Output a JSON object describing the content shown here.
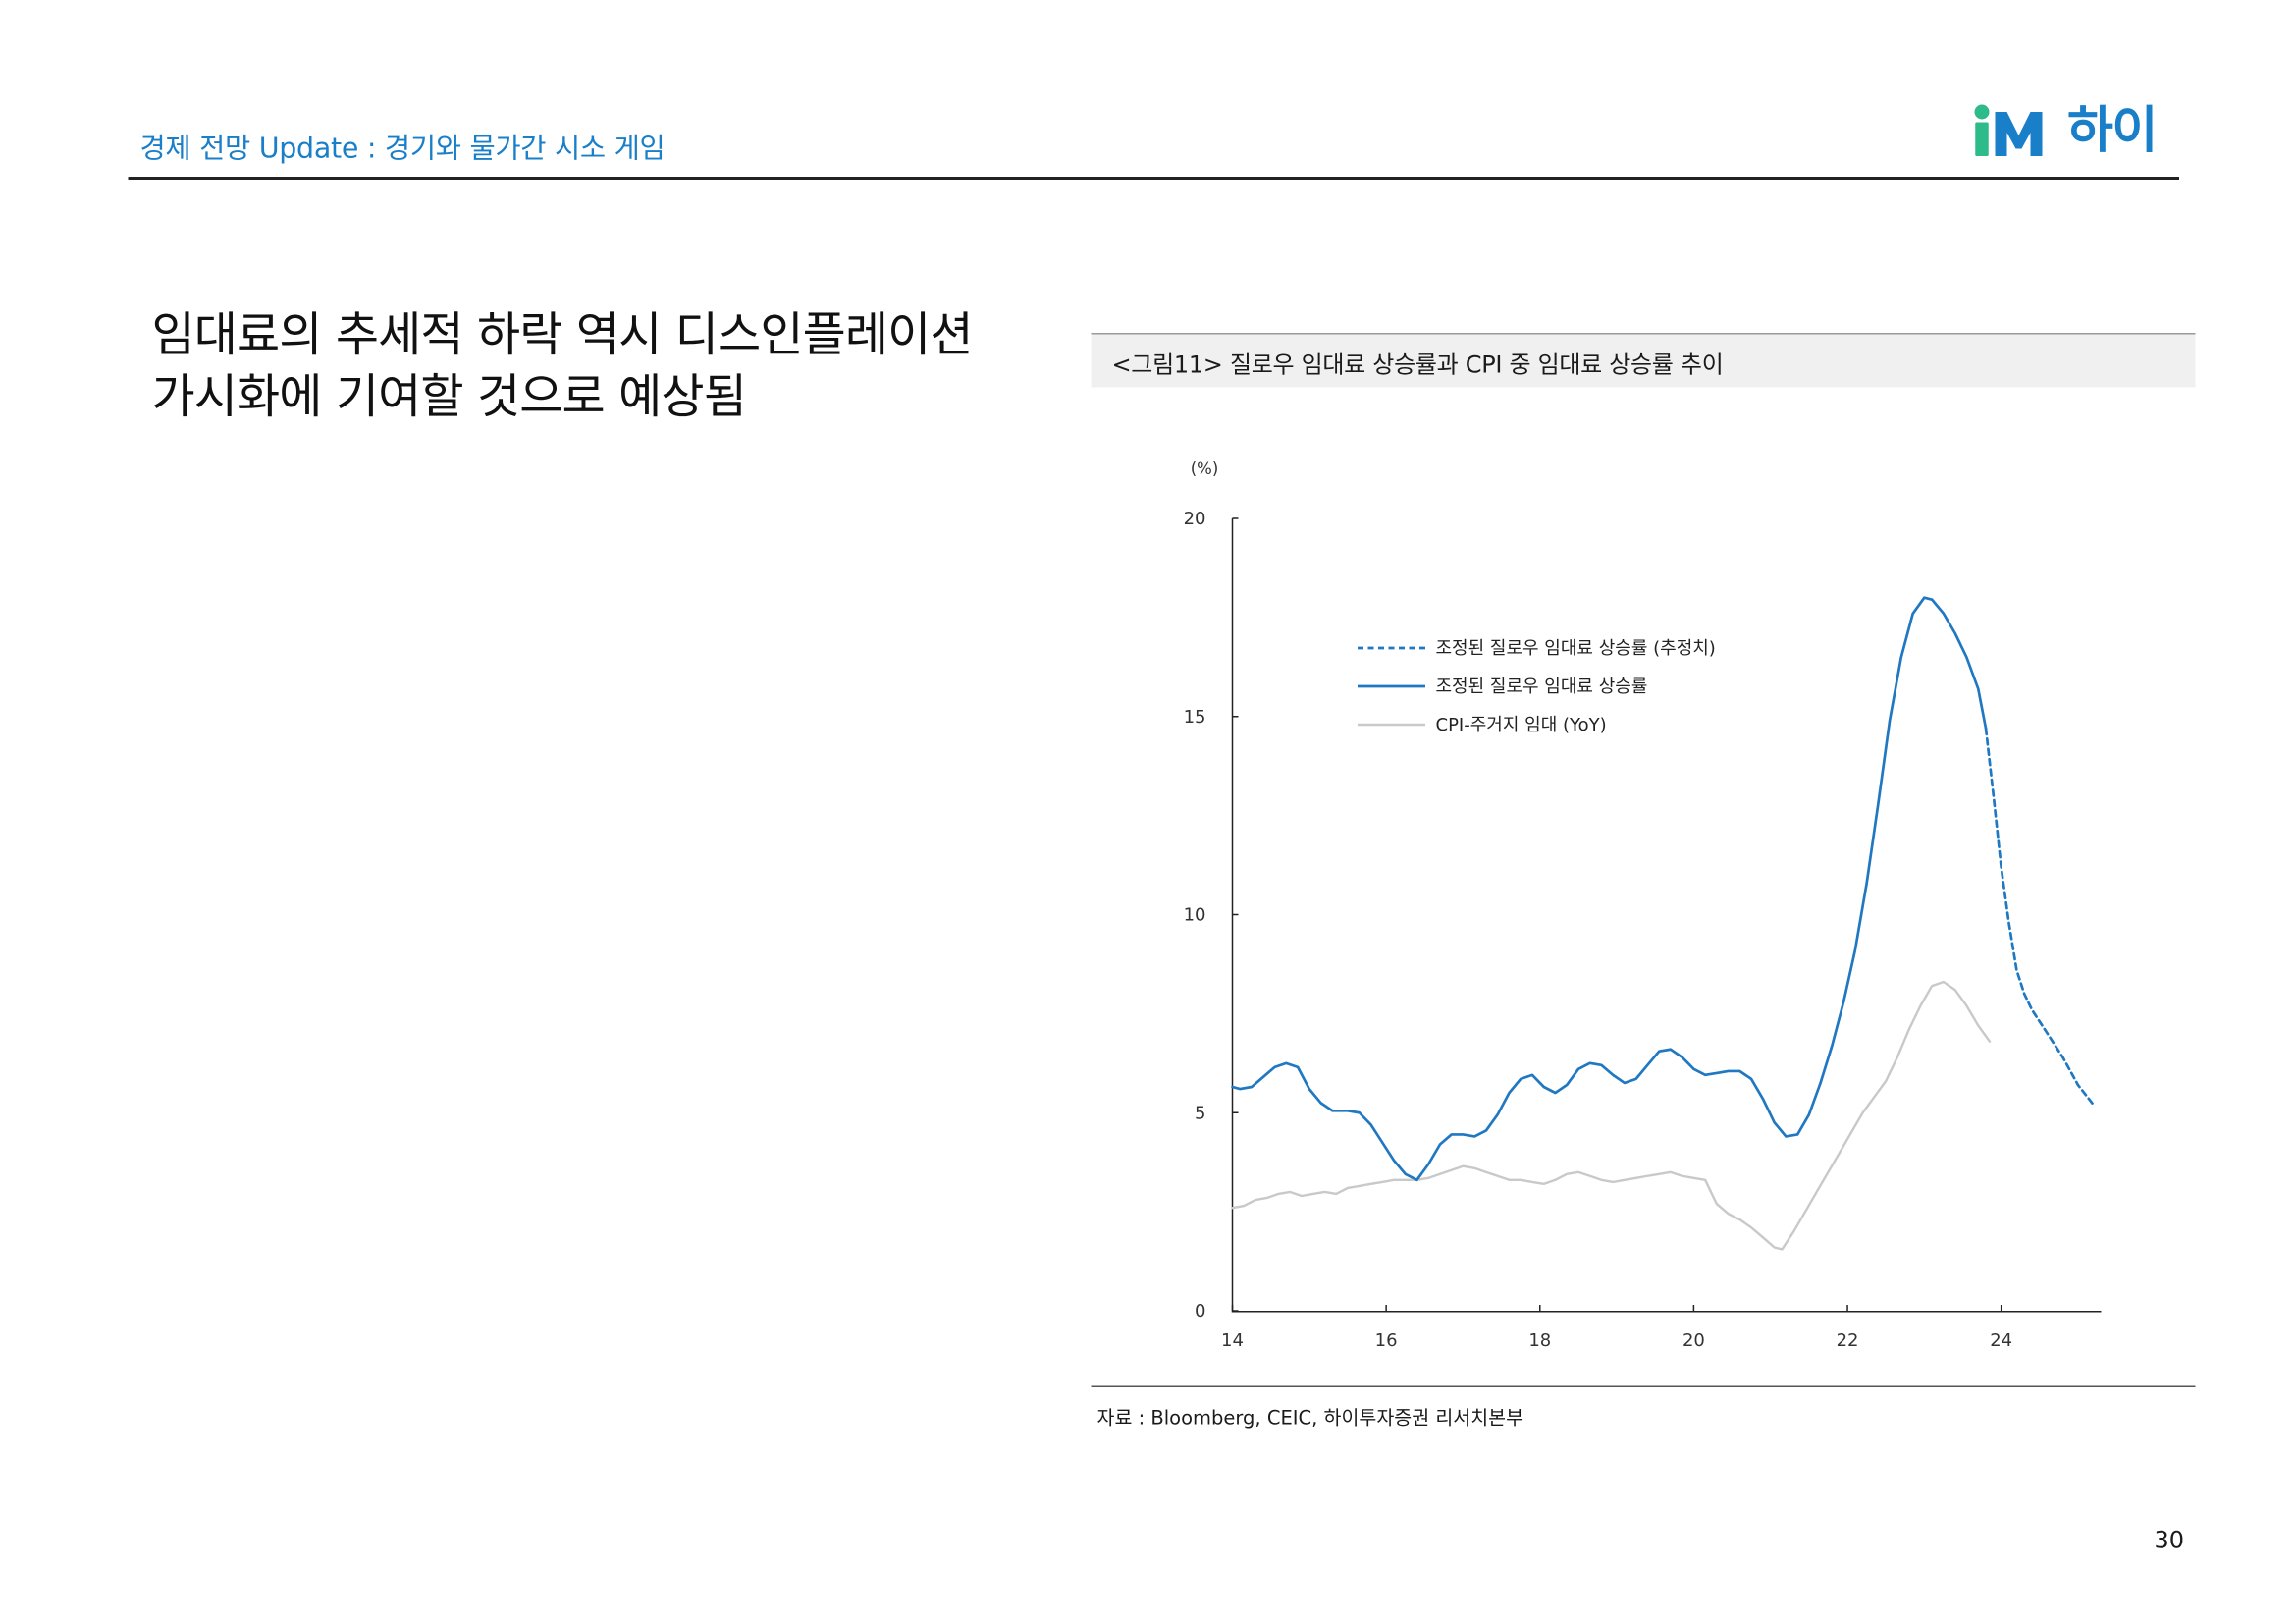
{
  "header": {
    "title": "경제 전망 Update : 경기와 물가간 시소 게임",
    "logo_brand": "iM",
    "logo_korean": "하이"
  },
  "headline": "임대료의 추세적 하락 역시 디스인플레이션 가시화에 기여할 것으로 예상됨",
  "figure": {
    "caption": "<그림11>  질로우 임대료 상승률과 CPI 중 임대료 상승률 추이",
    "source": "자료 : Bloomberg, CEIC, 하이투자증권 리서치본부"
  },
  "page_number": "30",
  "colors": {
    "accent": "#1a7fc9",
    "logo_green": "#2dbb8a",
    "zillow": "#1f78c1",
    "cpi": "#c9c9c9"
  },
  "chart_data": {
    "type": "line",
    "title": "",
    "unit_label": "(%)",
    "xlabel": "",
    "ylabel": "",
    "xlim": [
      14.0,
      25.3
    ],
    "ylim": [
      0,
      20
    ],
    "x_ticks": [
      14,
      16,
      18,
      20,
      22,
      24
    ],
    "x_tick_labels": [
      "14",
      "16",
      "18",
      "20",
      "22",
      "24"
    ],
    "y_ticks": [
      0,
      5,
      10,
      15,
      20
    ],
    "y_tick_labels": [
      "0",
      "5",
      "10",
      "15",
      "20"
    ],
    "grid": false,
    "legend_position": "upper-center",
    "series": [
      {
        "name": "조정된 질로우 임대료 상승률 (추정치)",
        "style": "dashed",
        "color": "#1f78c1",
        "points": [
          [
            23.8,
            14.7
          ],
          [
            23.9,
            13.0
          ],
          [
            24.0,
            11.2
          ],
          [
            24.1,
            9.8
          ],
          [
            24.2,
            8.6
          ],
          [
            24.3,
            8.0
          ],
          [
            24.4,
            7.6
          ],
          [
            24.6,
            7.0
          ],
          [
            24.8,
            6.4
          ],
          [
            25.0,
            5.7
          ],
          [
            25.2,
            5.2
          ]
        ]
      },
      {
        "name": "조정된 질로우 임대료 상승률",
        "style": "solid",
        "color": "#1f78c1",
        "points": [
          [
            14.0,
            5.65
          ],
          [
            14.1,
            5.6
          ],
          [
            14.25,
            5.65
          ],
          [
            14.4,
            5.9
          ],
          [
            14.55,
            6.15
          ],
          [
            14.7,
            6.25
          ],
          [
            14.85,
            6.15
          ],
          [
            15.0,
            5.6
          ],
          [
            15.15,
            5.25
          ],
          [
            15.3,
            5.05
          ],
          [
            15.5,
            5.05
          ],
          [
            15.65,
            5.0
          ],
          [
            15.8,
            4.7
          ],
          [
            15.95,
            4.25
          ],
          [
            16.1,
            3.8
          ],
          [
            16.25,
            3.45
          ],
          [
            16.4,
            3.3
          ],
          [
            16.55,
            3.7
          ],
          [
            16.7,
            4.2
          ],
          [
            16.85,
            4.45
          ],
          [
            17.0,
            4.45
          ],
          [
            17.15,
            4.4
          ],
          [
            17.3,
            4.55
          ],
          [
            17.45,
            4.95
          ],
          [
            17.6,
            5.5
          ],
          [
            17.75,
            5.85
          ],
          [
            17.9,
            5.95
          ],
          [
            18.05,
            5.65
          ],
          [
            18.2,
            5.5
          ],
          [
            18.35,
            5.7
          ],
          [
            18.5,
            6.1
          ],
          [
            18.65,
            6.25
          ],
          [
            18.8,
            6.2
          ],
          [
            18.95,
            5.95
          ],
          [
            19.1,
            5.75
          ],
          [
            19.25,
            5.85
          ],
          [
            19.4,
            6.2
          ],
          [
            19.55,
            6.55
          ],
          [
            19.7,
            6.6
          ],
          [
            19.85,
            6.4
          ],
          [
            20.0,
            6.1
          ],
          [
            20.15,
            5.95
          ],
          [
            20.3,
            6.0
          ],
          [
            20.45,
            6.05
          ],
          [
            20.6,
            6.05
          ],
          [
            20.75,
            5.85
          ],
          [
            20.9,
            5.35
          ],
          [
            21.05,
            4.75
          ],
          [
            21.2,
            4.4
          ],
          [
            21.35,
            4.45
          ],
          [
            21.5,
            4.95
          ],
          [
            21.65,
            5.75
          ],
          [
            21.8,
            6.7
          ],
          [
            21.95,
            7.8
          ],
          [
            22.1,
            9.1
          ],
          [
            22.25,
            10.8
          ],
          [
            22.4,
            12.8
          ],
          [
            22.55,
            14.9
          ],
          [
            22.7,
            16.5
          ],
          [
            22.85,
            17.6
          ],
          [
            23.0,
            18.0
          ],
          [
            23.1,
            17.95
          ],
          [
            23.25,
            17.6
          ],
          [
            23.4,
            17.1
          ],
          [
            23.55,
            16.5
          ],
          [
            23.7,
            15.7
          ],
          [
            23.8,
            14.7
          ]
        ]
      },
      {
        "name": "CPI-주거지 임대 (YoY)",
        "style": "solid",
        "color": "#c9c9c9",
        "points": [
          [
            14.0,
            2.6
          ],
          [
            14.15,
            2.65
          ],
          [
            14.3,
            2.8
          ],
          [
            14.45,
            2.85
          ],
          [
            14.6,
            2.95
          ],
          [
            14.75,
            3.0
          ],
          [
            14.9,
            2.9
          ],
          [
            15.05,
            2.95
          ],
          [
            15.2,
            3.0
          ],
          [
            15.35,
            2.95
          ],
          [
            15.5,
            3.1
          ],
          [
            15.65,
            3.15
          ],
          [
            15.8,
            3.2
          ],
          [
            15.95,
            3.25
          ],
          [
            16.1,
            3.3
          ],
          [
            16.25,
            3.3
          ],
          [
            16.4,
            3.3
          ],
          [
            16.55,
            3.35
          ],
          [
            16.7,
            3.45
          ],
          [
            16.85,
            3.55
          ],
          [
            17.0,
            3.65
          ],
          [
            17.15,
            3.6
          ],
          [
            17.3,
            3.5
          ],
          [
            17.45,
            3.4
          ],
          [
            17.6,
            3.3
          ],
          [
            17.75,
            3.3
          ],
          [
            17.9,
            3.25
          ],
          [
            18.05,
            3.2
          ],
          [
            18.2,
            3.3
          ],
          [
            18.35,
            3.45
          ],
          [
            18.5,
            3.5
          ],
          [
            18.65,
            3.4
          ],
          [
            18.8,
            3.3
          ],
          [
            18.95,
            3.25
          ],
          [
            19.1,
            3.3
          ],
          [
            19.25,
            3.35
          ],
          [
            19.4,
            3.4
          ],
          [
            19.55,
            3.45
          ],
          [
            19.7,
            3.5
          ],
          [
            19.85,
            3.4
          ],
          [
            20.0,
            3.35
          ],
          [
            20.15,
            3.3
          ],
          [
            20.3,
            2.7
          ],
          [
            20.45,
            2.45
          ],
          [
            20.6,
            2.3
          ],
          [
            20.75,
            2.1
          ],
          [
            20.9,
            1.85
          ],
          [
            21.05,
            1.6
          ],
          [
            21.15,
            1.55
          ],
          [
            21.3,
            2.0
          ],
          [
            21.45,
            2.5
          ],
          [
            21.6,
            3.0
          ],
          [
            21.75,
            3.5
          ],
          [
            21.9,
            4.0
          ],
          [
            22.05,
            4.5
          ],
          [
            22.2,
            5.0
          ],
          [
            22.35,
            5.4
          ],
          [
            22.5,
            5.8
          ],
          [
            22.65,
            6.4
          ],
          [
            22.8,
            7.1
          ],
          [
            22.95,
            7.7
          ],
          [
            23.1,
            8.2
          ],
          [
            23.25,
            8.3
          ],
          [
            23.4,
            8.1
          ],
          [
            23.55,
            7.7
          ],
          [
            23.7,
            7.2
          ],
          [
            23.85,
            6.8
          ]
        ]
      }
    ]
  }
}
